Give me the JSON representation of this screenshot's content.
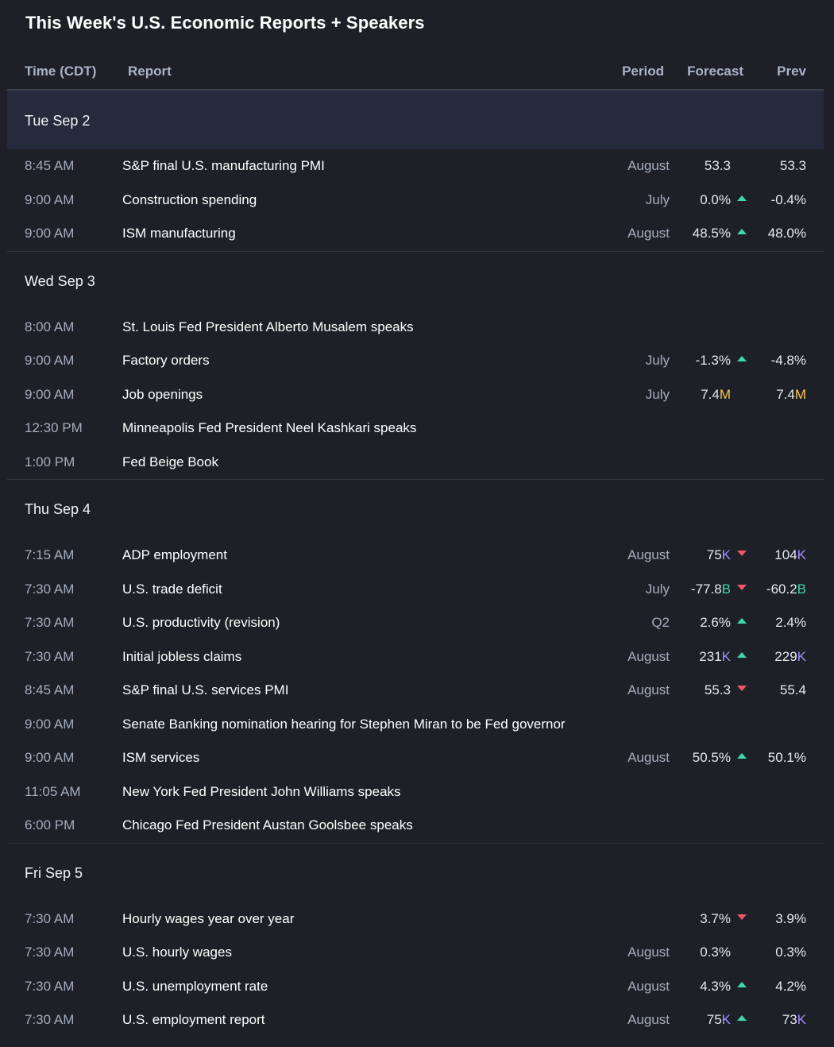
{
  "title": "This Week's U.S. Economic Reports + Speakers",
  "columns": {
    "time": "Time (CDT)",
    "report": "Report",
    "period": "Period",
    "forecast": "Forecast",
    "prev": "Prev"
  },
  "colors": {
    "background": "#1d2027",
    "highlight_row": "#252a3d",
    "up": "#3dd9a6",
    "down": "#f0566b",
    "suffix_M": "#ffc54f",
    "suffix_K": "#a68cff",
    "suffix_B": "#3dd9a6"
  },
  "days": [
    {
      "label": "Tue Sep 2",
      "rows": [
        {
          "time": "8:45 AM",
          "report": "S&P final U.S. manufacturing PMI",
          "period": "August",
          "forecast": "53.3",
          "fsfx": "",
          "trend": "",
          "prev": "53.3",
          "psfx": ""
        },
        {
          "time": "9:00 AM",
          "report": "Construction spending",
          "period": "July",
          "forecast": "0.0%",
          "fsfx": "",
          "trend": "up",
          "prev": "-0.4%",
          "psfx": ""
        },
        {
          "time": "9:00 AM",
          "report": "ISM manufacturing",
          "period": "August",
          "forecast": "48.5%",
          "fsfx": "",
          "trend": "up",
          "prev": "48.0%",
          "psfx": ""
        }
      ]
    },
    {
      "label": "Wed Sep 3",
      "rows": [
        {
          "time": "8:00 AM",
          "report": "St. Louis Fed President Alberto Musalem speaks",
          "period": "",
          "forecast": "",
          "fsfx": "",
          "trend": "",
          "prev": "",
          "psfx": ""
        },
        {
          "time": "9:00 AM",
          "report": "Factory orders",
          "period": "July",
          "forecast": "-1.3%",
          "fsfx": "",
          "trend": "up",
          "prev": "-4.8%",
          "psfx": ""
        },
        {
          "time": "9:00 AM",
          "report": "Job openings",
          "period": "July",
          "forecast": "7.4",
          "fsfx": "M",
          "trend": "",
          "prev": "7.4",
          "psfx": "M"
        },
        {
          "time": "12:30 PM",
          "report": "Minneapolis Fed President Neel Kashkari speaks",
          "period": "",
          "forecast": "",
          "fsfx": "",
          "trend": "",
          "prev": "",
          "psfx": ""
        },
        {
          "time": "1:00 PM",
          "report": "Fed Beige Book",
          "period": "",
          "forecast": "",
          "fsfx": "",
          "trend": "",
          "prev": "",
          "psfx": ""
        }
      ]
    },
    {
      "label": "Thu Sep 4",
      "rows": [
        {
          "time": "7:15 AM",
          "report": "ADP employment",
          "period": "August",
          "forecast": "75",
          "fsfx": "K",
          "trend": "down",
          "prev": "104",
          "psfx": "K"
        },
        {
          "time": "7:30 AM",
          "report": "U.S. trade deficit",
          "period": "July",
          "forecast": "-77.8",
          "fsfx": "B",
          "trend": "down",
          "prev": "-60.2",
          "psfx": "B"
        },
        {
          "time": "7:30 AM",
          "report": "U.S. productivity (revision)",
          "period": "Q2",
          "forecast": "2.6%",
          "fsfx": "",
          "trend": "up",
          "prev": "2.4%",
          "psfx": ""
        },
        {
          "time": "7:30 AM",
          "report": "Initial jobless claims",
          "period": "August",
          "forecast": "231",
          "fsfx": "K",
          "trend": "up",
          "prev": "229",
          "psfx": "K"
        },
        {
          "time": "8:45 AM",
          "report": "S&P final U.S. services PMI",
          "period": "August",
          "forecast": "55.3",
          "fsfx": "",
          "trend": "down",
          "prev": "55.4",
          "psfx": ""
        },
        {
          "time": "9:00 AM",
          "report": "Senate Banking nomination hearing for Stephen Miran to be Fed governor",
          "period": "",
          "forecast": "",
          "fsfx": "",
          "trend": "",
          "prev": "",
          "psfx": ""
        },
        {
          "time": "9:00 AM",
          "report": "ISM services",
          "period": "August",
          "forecast": "50.5%",
          "fsfx": "",
          "trend": "up",
          "prev": "50.1%",
          "psfx": ""
        },
        {
          "time": "11:05 AM",
          "report": "New York Fed President John Williams speaks",
          "period": "",
          "forecast": "",
          "fsfx": "",
          "trend": "",
          "prev": "",
          "psfx": ""
        },
        {
          "time": "6:00 PM",
          "report": "Chicago Fed President Austan Goolsbee speaks",
          "period": "",
          "forecast": "",
          "fsfx": "",
          "trend": "",
          "prev": "",
          "psfx": ""
        }
      ]
    },
    {
      "label": "Fri Sep 5",
      "rows": [
        {
          "time": "7:30 AM",
          "report": "Hourly wages year over year",
          "period": "",
          "forecast": "3.7%",
          "fsfx": "",
          "trend": "down",
          "prev": "3.9%",
          "psfx": ""
        },
        {
          "time": "7:30 AM",
          "report": "U.S. hourly wages",
          "period": "August",
          "forecast": "0.3%",
          "fsfx": "",
          "trend": "",
          "prev": "0.3%",
          "psfx": ""
        },
        {
          "time": "7:30 AM",
          "report": "U.S. unemployment rate",
          "period": "August",
          "forecast": "4.3%",
          "fsfx": "",
          "trend": "up",
          "prev": "4.2%",
          "psfx": ""
        },
        {
          "time": "7:30 AM",
          "report": "U.S. employment report",
          "period": "August",
          "forecast": "75",
          "fsfx": "K",
          "trend": "up",
          "prev": "73",
          "psfx": "K"
        }
      ]
    }
  ]
}
